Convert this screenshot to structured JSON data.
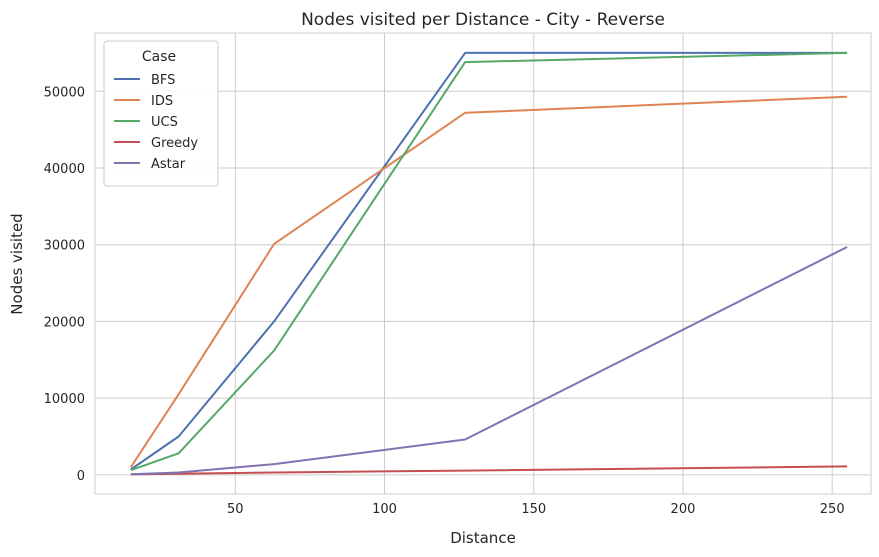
{
  "chart_data": {
    "type": "line",
    "title": "Nodes visited per Distance - City - Reverse",
    "xlabel": "Distance",
    "ylabel": "Nodes visited",
    "xlim": [
      3,
      263
    ],
    "ylim": [
      -2500,
      57600
    ],
    "xticks": [
      50,
      100,
      150,
      200,
      250
    ],
    "yticks": [
      0,
      10000,
      20000,
      30000,
      40000,
      50000
    ],
    "grid": true,
    "legend": {
      "title": "Case",
      "placement": "top-left"
    },
    "x": [
      15,
      31,
      63,
      127,
      255
    ],
    "series": [
      {
        "name": "BFS",
        "color": "#4c72b0",
        "values": [
          700,
          5000,
          20000,
          55000,
          55000
        ]
      },
      {
        "name": "IDS",
        "color": "#dd8452",
        "values": [
          1000,
          10500,
          30100,
          47200,
          49300
        ]
      },
      {
        "name": "UCS",
        "color": "#55a868",
        "values": [
          600,
          2800,
          16200,
          53800,
          55000
        ]
      },
      {
        "name": "Greedy",
        "color": "#c44e52",
        "values": [
          50,
          150,
          300,
          550,
          1100
        ]
      },
      {
        "name": "Astar",
        "color": "#8172b2",
        "values": [
          80,
          300,
          1400,
          4600,
          29700
        ]
      }
    ]
  }
}
